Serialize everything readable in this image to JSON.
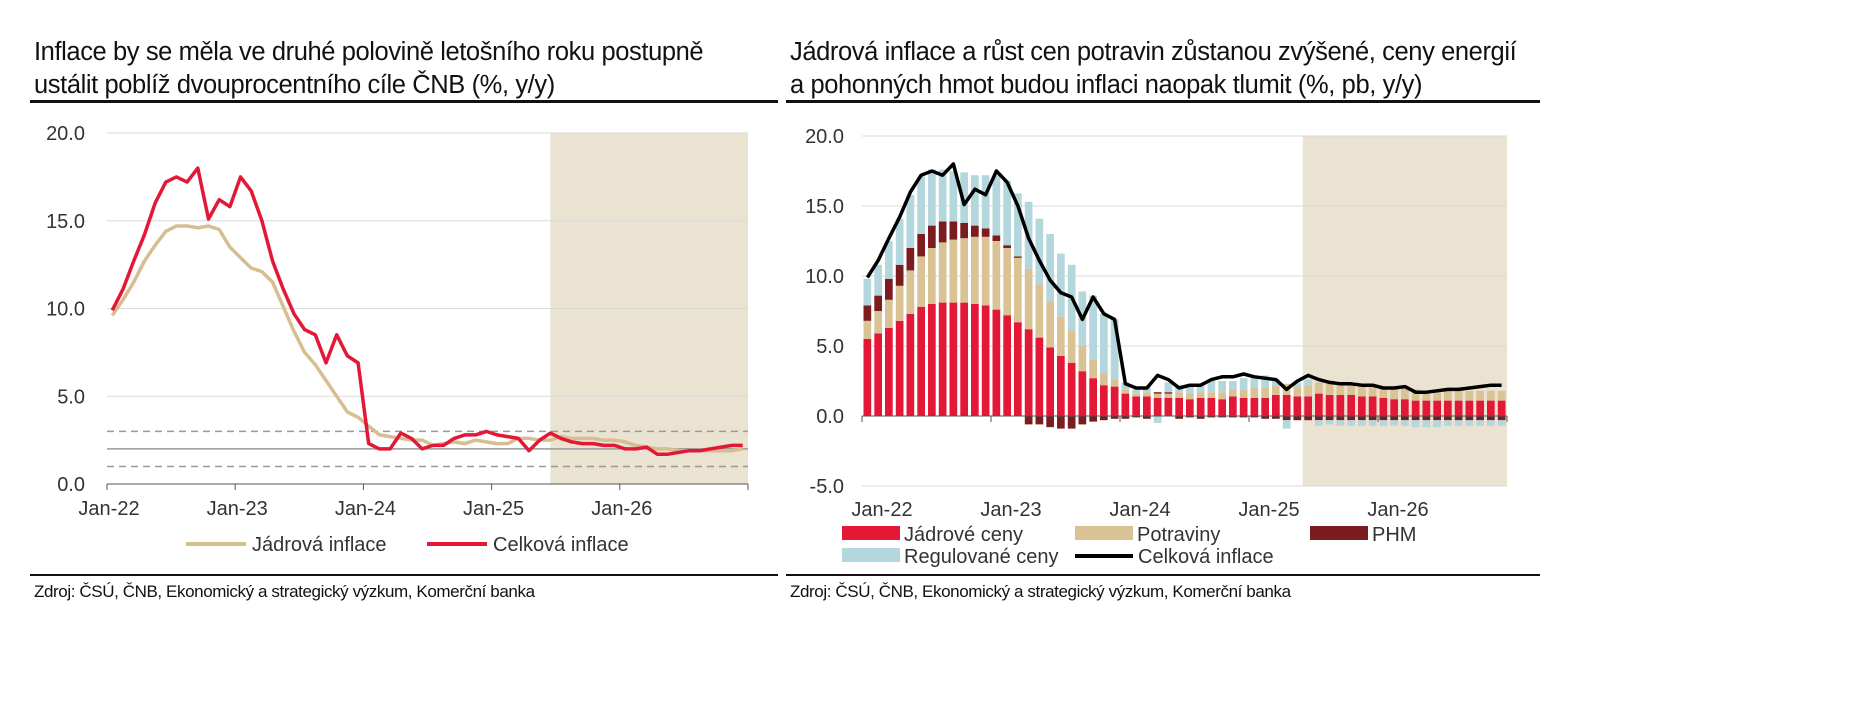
{
  "colors": {
    "core_inflation": "#D6BE92",
    "headline_inflation": "#E31837",
    "core_prices": "#E31837",
    "food": "#D9C394",
    "fuel": "#7B1C21",
    "regulated": "#B3D7DC",
    "headline_line_right": "#000000",
    "forecast_band": "#EBE3D1",
    "grid": "#D9D9D9"
  },
  "left": {
    "title_line1": "Inflace by se měla ve druhé polovině letošního roku postupně",
    "title_line2": "ustálit poblíž dvouprocentního cíle ČNB (%, y/y)",
    "source": "Zdroj: ČSÚ, ČNB, Ekonomický a strategický výzkum, Komerční banka"
  },
  "right": {
    "title_line1": "Jádrová inflace a růst cen potravin zůstanou zvýšené, ceny energií",
    "title_line2": "a pohonných hmot budou inflaci naopak tlumit (%, pb, y/y)",
    "source": "Zdroj: ČSÚ, ČNB, Ekonomický a strategický výzkum, Komerční banka"
  },
  "chart_data": [
    {
      "type": "line",
      "title": "Inflace by se měla ve druhé polovině letošního roku postupně ustálit poblíž dvouprocentního cíle ČNB (%, y/y)",
      "x_start": "2022-01",
      "x_end": "2026-12",
      "x_ticks": [
        "Jan-22",
        "Jan-23",
        "Jan-24",
        "Jan-25",
        "Jan-26"
      ],
      "y_ticks": [
        "0.0",
        "5.0",
        "10.0",
        "15.0",
        "20.0"
      ],
      "ylim": [
        0,
        20
      ],
      "forecast_start": "2025-06",
      "forecast_end": "2026-12",
      "reference_lines": {
        "target": 2,
        "band": [
          1,
          3
        ]
      },
      "legend": "bottom",
      "series": [
        {
          "name": "Jádrová inflace",
          "values": [
            9.6,
            10.5,
            11.5,
            12.7,
            13.6,
            14.4,
            14.7,
            14.7,
            14.6,
            14.7,
            14.5,
            13.5,
            12.9,
            12.3,
            12.1,
            11.5,
            10.1,
            8.7,
            7.5,
            6.8,
            5.9,
            5.0,
            4.1,
            3.8,
            3.3,
            2.8,
            2.7,
            2.6,
            2.5,
            2.5,
            2.2,
            2.3,
            2.4,
            2.3,
            2.5,
            2.4,
            2.3,
            2.3,
            2.6,
            2.6,
            2.5,
            2.5,
            2.7,
            2.6,
            2.6,
            2.6,
            2.5,
            2.5,
            2.4,
            2.2,
            2.1,
            2.0,
            2.0,
            1.9,
            1.9,
            1.9,
            1.9,
            1.9,
            1.9,
            2.0
          ]
        },
        {
          "name": "Celková inflace",
          "values": [
            9.9,
            11.1,
            12.7,
            14.2,
            16.0,
            17.2,
            17.5,
            17.2,
            18.0,
            15.1,
            16.2,
            15.8,
            17.5,
            16.7,
            15.0,
            12.7,
            11.1,
            9.7,
            8.8,
            8.5,
            6.9,
            8.5,
            7.3,
            6.9,
            2.3,
            2.0,
            2.0,
            2.9,
            2.6,
            2.0,
            2.2,
            2.2,
            2.6,
            2.8,
            2.8,
            3.0,
            2.8,
            2.7,
            2.6,
            1.9,
            2.5,
            2.9,
            2.6,
            2.4,
            2.3,
            2.3,
            2.2,
            2.2,
            2.0,
            2.0,
            2.1,
            1.7,
            1.7,
            1.8,
            1.9,
            1.9,
            2.0,
            2.1,
            2.2,
            2.2
          ]
        }
      ]
    },
    {
      "type": "bar",
      "stacked": true,
      "title": "Jádrová inflace a růst cen potravin zůstanou zvýšené, ceny energií a pohonných hmot budou inflaci naopak tlumit (%, pb, y/y)",
      "x_start": "2022-01",
      "x_end": "2026-12",
      "x_ticks": [
        "Jan-22",
        "Jan-23",
        "Jan-24",
        "Jan-25",
        "Jan-26"
      ],
      "y_ticks": [
        "-5.0",
        "0.0",
        "5.0",
        "10.0",
        "15.0",
        "20.0"
      ],
      "ylim": [
        -5,
        20
      ],
      "forecast_start": "2025-06",
      "forecast_end": "2026-12",
      "legend": "bottom",
      "series": [
        {
          "name": "Jádrové ceny",
          "values": [
            5.5,
            5.9,
            6.3,
            6.8,
            7.3,
            7.8,
            8.0,
            8.1,
            8.1,
            8.1,
            8.0,
            7.9,
            7.6,
            7.2,
            6.7,
            6.2,
            5.6,
            4.9,
            4.3,
            3.8,
            3.2,
            2.7,
            2.2,
            2.1,
            1.6,
            1.4,
            1.4,
            1.3,
            1.3,
            1.3,
            1.2,
            1.3,
            1.3,
            1.2,
            1.4,
            1.3,
            1.3,
            1.3,
            1.5,
            1.5,
            1.4,
            1.4,
            1.6,
            1.5,
            1.5,
            1.5,
            1.4,
            1.4,
            1.3,
            1.2,
            1.2,
            1.1,
            1.1,
            1.1,
            1.1,
            1.1,
            1.1,
            1.1,
            1.1,
            1.1
          ]
        },
        {
          "name": "Potraviny",
          "values": [
            1.3,
            1.6,
            2.0,
            2.5,
            3.1,
            3.6,
            4.0,
            4.3,
            4.5,
            4.6,
            4.8,
            4.9,
            4.9,
            4.8,
            4.6,
            4.3,
            3.8,
            3.3,
            2.8,
            2.3,
            1.8,
            1.3,
            0.9,
            0.5,
            0.3,
            0.2,
            0.3,
            0.3,
            0.3,
            0.4,
            0.4,
            0.4,
            0.4,
            0.5,
            0.5,
            0.6,
            0.7,
            0.7,
            0.7,
            0.8,
            0.7,
            0.8,
            0.8,
            0.8,
            0.8,
            0.8,
            0.8,
            0.8,
            0.8,
            0.8,
            0.8,
            0.8,
            0.7,
            0.7,
            0.7,
            0.7,
            0.7,
            0.7,
            0.7,
            0.7
          ]
        },
        {
          "name": "PHM",
          "values": [
            1.1,
            1.1,
            1.5,
            1.5,
            1.6,
            1.6,
            1.6,
            1.5,
            1.3,
            1.1,
            0.8,
            0.6,
            0.4,
            0.2,
            0.1,
            -0.6,
            -0.6,
            -0.8,
            -0.9,
            -0.9,
            -0.6,
            -0.4,
            -0.3,
            -0.2,
            -0.2,
            -0.1,
            -0.2,
            0.1,
            0.1,
            -0.2,
            -0.1,
            -0.2,
            -0.1,
            -0.1,
            -0.1,
            -0.1,
            -0.1,
            -0.2,
            -0.2,
            -0.3,
            -0.3,
            -0.3,
            -0.3,
            -0.3,
            -0.3,
            -0.3,
            -0.3,
            -0.3,
            -0.3,
            -0.3,
            -0.3,
            -0.3,
            -0.3,
            -0.3,
            -0.3,
            -0.3,
            -0.3,
            -0.3,
            -0.3,
            -0.3
          ]
        },
        {
          "name": "Regulované ceny",
          "values": [
            1.9,
            2.2,
            2.7,
            3.3,
            3.8,
            4.1,
            4.0,
            3.7,
            3.6,
            3.6,
            3.6,
            3.8,
            4.3,
            4.6,
            4.5,
            4.8,
            4.7,
            4.8,
            4.5,
            4.7,
            3.9,
            4.6,
            4.2,
            4.3,
            0.5,
            0.3,
            0.4,
            -0.5,
            0.7,
            0.5,
            0.7,
            0.6,
            0.8,
            0.8,
            0.6,
            0.8,
            0.9,
            0.9,
            0.4,
            -0.6,
            0.3,
            0.4,
            -0.4,
            -0.3,
            -0.4,
            -0.4,
            -0.4,
            -0.4,
            -0.4,
            -0.4,
            -0.4,
            -0.5,
            -0.5,
            -0.5,
            -0.4,
            -0.4,
            -0.4,
            -0.4,
            -0.4,
            -0.4
          ]
        },
        {
          "name": "Celková inflace",
          "type": "line",
          "values": [
            9.9,
            11.1,
            12.7,
            14.2,
            16.0,
            17.2,
            17.5,
            17.2,
            18.0,
            15.1,
            16.2,
            15.8,
            17.5,
            16.7,
            15.0,
            12.7,
            11.1,
            9.7,
            8.8,
            8.5,
            6.9,
            8.5,
            7.3,
            6.9,
            2.3,
            2.0,
            2.0,
            2.9,
            2.6,
            2.0,
            2.2,
            2.2,
            2.6,
            2.8,
            2.8,
            3.0,
            2.8,
            2.7,
            2.6,
            1.9,
            2.5,
            2.9,
            2.6,
            2.4,
            2.3,
            2.3,
            2.2,
            2.2,
            2.0,
            2.0,
            2.1,
            1.7,
            1.7,
            1.8,
            1.9,
            1.9,
            2.0,
            2.1,
            2.2,
            2.2
          ]
        }
      ]
    }
  ]
}
